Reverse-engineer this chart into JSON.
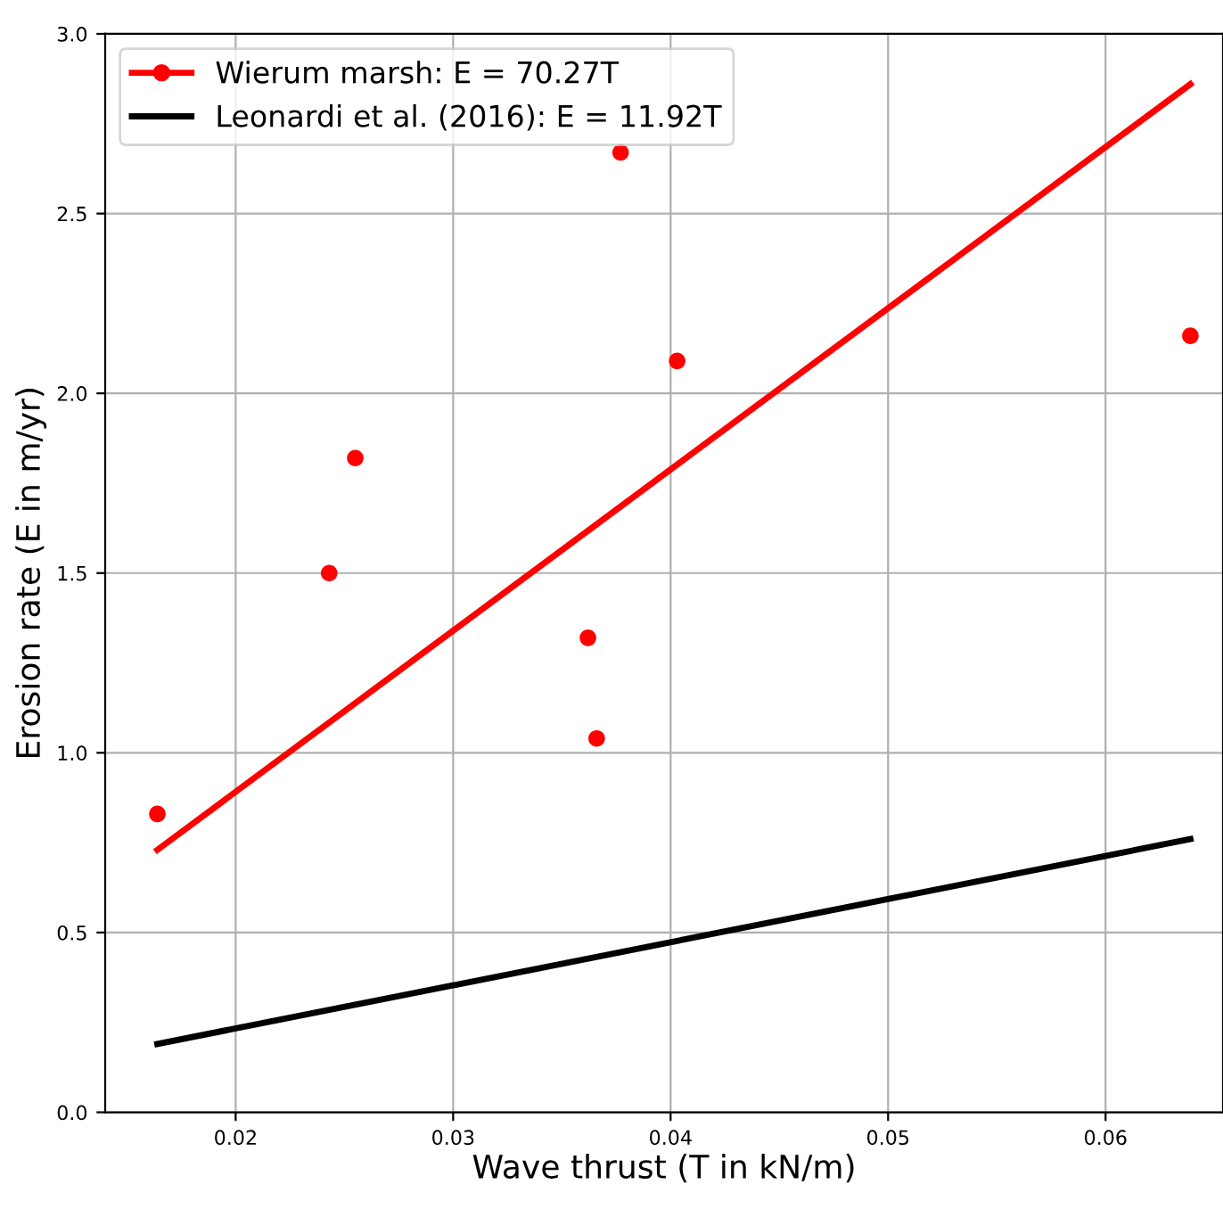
{
  "chart_data": {
    "type": "scatter",
    "xlabel": "Wave thrust (T in kN/m)",
    "ylabel": "Erosion rate (E in m/yr)",
    "xlim": [
      0.014,
      0.0654
    ],
    "ylim": [
      0,
      3
    ],
    "xticks": [
      0.02,
      0.03,
      0.04,
      0.05,
      0.06
    ],
    "yticks": [
      {
        "value": 0,
        "label": "0.0"
      },
      {
        "value": 0.5,
        "label": "0.5"
      },
      {
        "value": 1,
        "label": "1.0"
      },
      {
        "value": 1.5,
        "label": "1.5"
      },
      {
        "value": 2,
        "label": "2.0"
      },
      {
        "value": 2.5,
        "label": "2.5"
      },
      {
        "value": 3,
        "label": "3.0"
      }
    ],
    "grid": true,
    "legend": "top left",
    "series": [
      {
        "name": "Wierum marsh: E = 70.27T",
        "color": "#ff0000",
        "marker": "circle",
        "x": [
          0.0164,
          0.0243,
          0.0255,
          0.0362,
          0.0366,
          0.0377,
          0.0403,
          0.0639
        ],
        "values": [
          0.83,
          1.5,
          1.82,
          1.32,
          1.04,
          2.67,
          2.09,
          2.16
        ]
      },
      {
        "type": "line",
        "color": "#ff0000",
        "x": [
          0.0164,
          0.0639
        ],
        "values": [
          0.73,
          2.86
        ]
      },
      {
        "name": "Leonardi et al. (2016): E = 11.92T",
        "type": "line",
        "color": "#000000",
        "x": [
          0.0164,
          0.0639
        ],
        "values": [
          0.19,
          0.76
        ]
      }
    ]
  }
}
